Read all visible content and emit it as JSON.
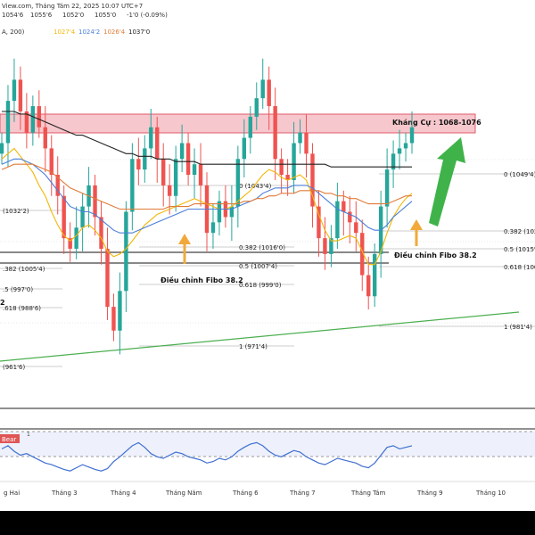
{
  "header": {
    "source_line": "View.com, Tháng Tám 22, 2025 10:07 UTC+7",
    "ohlc": {
      "o": "1054'6",
      "h": "1055'6",
      "l": "1052'0",
      "c": "1055'0",
      "chg": "-1'0 (-0.09%)"
    },
    "ma_label": "A, 200)",
    "ma_values": [
      {
        "text": "1027'4",
        "color": "#f2b705"
      },
      {
        "text": "1024'2",
        "color": "#4a7fd8"
      },
      {
        "text": "1026'4",
        "color": "#e07b39"
      },
      {
        "text": "1037'0",
        "color": "#222222"
      }
    ]
  },
  "annotations": {
    "resistance": "Kháng Cự : 1068-1076",
    "fibo_left": "Điều chỉnh Fibo 38.2",
    "fibo_right": "Điều chỉnh Fibo 38.2",
    "side_label": "2"
  },
  "fib_left": [
    {
      "text": "0 (1043'4)"
    },
    {
      "text": "0.382 (1016'0)"
    },
    {
      "text": "0.5 (1007'4)"
    },
    {
      "text": "0.618 (999'0)"
    },
    {
      "text": "1 (971'4)"
    }
  ],
  "fib_right": [
    {
      "text": "0 (1049'4)"
    },
    {
      "text": "0.382 (102"
    },
    {
      "text": "0.5 (1015'4"
    },
    {
      "text": "0.618 (100"
    },
    {
      "text": "1 (981'4)"
    }
  ],
  "fib_far_left": [
    {
      "text": "(1032'2)"
    },
    {
      "text": ".382 (1005'4)"
    },
    {
      "text": ".5 (997'0)"
    },
    {
      "text": ".618 (988'6)"
    },
    {
      "text": "(961'6)"
    }
  ],
  "rsi_label": "Bear",
  "rsi_value": "1",
  "x_axis_labels": [
    "g Hai",
    "Tháng 3",
    "Tháng 4",
    "Tháng Năm",
    "Tháng 6",
    "Tháng 7",
    "Tháng Tám",
    "Tháng 9",
    "Tháng 10"
  ],
  "chart_data": {
    "type": "line",
    "title": "",
    "xlabel": "",
    "ylabel": "",
    "ylim": [
      955,
      1085
    ],
    "resistance_zone": [
      1068,
      1076
    ],
    "series": [
      {
        "values": [
          1046,
          1062,
          1070,
          1058,
          1050,
          1060,
          1052,
          1044,
          1034,
          1026,
          1010,
          1006,
          1014,
          1022,
          1030,
          1018,
          1006,
          984,
          975,
          990,
          1020,
          1040,
          1036,
          1044,
          1052,
          1040,
          1030,
          1026,
          1040,
          1046,
          1034,
          1038,
          1030,
          1012,
          1016,
          1024,
          1018,
          1022,
          1040,
          1048,
          1056,
          1063,
          1070,
          1060,
          1040,
          1034,
          1032,
          1046,
          1050,
          1042,
          1022,
          1010,
          1004,
          1010,
          1024,
          1020,
          1016,
          1012,
          996,
          988,
          1004,
          1022,
          1036,
          1042,
          1044,
          1046,
          1052
        ]
      },
      {
        "color": "#f2b705",
        "values": [
          1040,
          1042,
          1044,
          1041,
          1038,
          1035,
          1030,
          1026,
          1020,
          1015,
          1011,
          1009,
          1011,
          1014,
          1015,
          1013,
          1010,
          1005,
          1003,
          1004,
          1006,
          1009,
          1012,
          1015,
          1017,
          1019,
          1020,
          1021,
          1022,
          1023,
          1024,
          1025,
          1024,
          1023,
          1022,
          1021,
          1021,
          1022,
          1024,
          1026,
          1028,
          1031,
          1034,
          1036,
          1035,
          1033,
          1032,
          1033,
          1034,
          1032,
          1026,
          1019,
          1013,
          1009,
          1009,
          1010,
          1011,
          1010,
          1005,
          1000,
          1000,
          1005,
          1012,
          1018,
          1022,
          1025,
          1027
        ]
      },
      {
        "color": "#4a7fd8",
        "values": [
          1038,
          1039,
          1040,
          1040,
          1039,
          1038,
          1036,
          1034,
          1031,
          1028,
          1025,
          1022,
          1021,
          1020,
          1020,
          1019,
          1017,
          1015,
          1013,
          1012,
          1012,
          1012,
          1013,
          1014,
          1015,
          1016,
          1017,
          1018,
          1019,
          1020,
          1021,
          1021,
          1021,
          1021,
          1021,
          1021,
          1021,
          1021,
          1022,
          1023,
          1024,
          1025,
          1027,
          1028,
          1029,
          1029,
          1029,
          1030,
          1030,
          1030,
          1029,
          1027,
          1025,
          1023,
          1021,
          1020,
          1019,
          1018,
          1016,
          1014,
          1013,
          1013,
          1015,
          1018,
          1020,
          1022,
          1024
        ]
      },
      {
        "color": "#e07b39",
        "values": [
          1036,
          1037,
          1038,
          1038,
          1038,
          1038,
          1037,
          1036,
          1035,
          1033,
          1031,
          1029,
          1028,
          1027,
          1026,
          1025,
          1024,
          1023,
          1022,
          1021,
          1021,
          1021,
          1021,
          1021,
          1021,
          1021,
          1021,
          1022,
          1022,
          1022,
          1022,
          1023,
          1023,
          1023,
          1023,
          1023,
          1023,
          1023,
          1023,
          1024,
          1024,
          1025,
          1025,
          1026,
          1026,
          1027,
          1027,
          1027,
          1028,
          1028,
          1028,
          1028,
          1027,
          1027,
          1026,
          1026,
          1025,
          1025,
          1024,
          1023,
          1023,
          1023,
          1023,
          1024,
          1025,
          1026,
          1026
        ]
      },
      {
        "color": "#222222",
        "values": [
          1058,
          1058,
          1058,
          1057,
          1057,
          1056,
          1055,
          1054,
          1053,
          1052,
          1051,
          1050,
          1049,
          1049,
          1048,
          1047,
          1046,
          1045,
          1044,
          1043,
          1042,
          1042,
          1041,
          1041,
          1041,
          1040,
          1040,
          1040,
          1039,
          1039,
          1039,
          1039,
          1038,
          1038,
          1038,
          1038,
          1038,
          1038,
          1038,
          1038,
          1038,
          1038,
          1038,
          1038,
          1038,
          1038,
          1038,
          1038,
          1038,
          1038,
          1038,
          1038,
          1038,
          1037,
          1037,
          1037,
          1037,
          1037,
          1037,
          1037,
          1037,
          1037,
          1037,
          1037,
          1037,
          1037,
          1037
        ]
      }
    ],
    "rsi_values": [
      58,
      62,
      55,
      50,
      52,
      48,
      44,
      40,
      38,
      35,
      32,
      30,
      34,
      38,
      35,
      32,
      30,
      33,
      42,
      48,
      55,
      62,
      66,
      60,
      52,
      48,
      46,
      50,
      54,
      52,
      48,
      46,
      44,
      40,
      42,
      46,
      44,
      48,
      55,
      60,
      64,
      66,
      62,
      55,
      50,
      48,
      52,
      56,
      54,
      48,
      44,
      40,
      38,
      42,
      46,
      44,
      42,
      40,
      36,
      34,
      40,
      50,
      60,
      62,
      58,
      60,
      62
    ]
  }
}
